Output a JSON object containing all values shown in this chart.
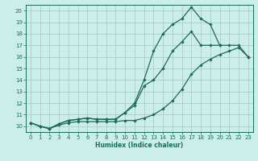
{
  "title": "",
  "xlabel": "Humidex (Indice chaleur)",
  "bg_color": "#cceee8",
  "line_color": "#1a6b5a",
  "grid_color": "#aacccc",
  "xlim": [
    -0.5,
    23.5
  ],
  "ylim": [
    9.5,
    20.5
  ],
  "xticks": [
    0,
    1,
    2,
    3,
    4,
    5,
    6,
    7,
    8,
    9,
    10,
    11,
    12,
    13,
    14,
    15,
    16,
    17,
    18,
    19,
    20,
    21,
    22,
    23
  ],
  "yticks": [
    10,
    11,
    12,
    13,
    14,
    15,
    16,
    17,
    18,
    19,
    20
  ],
  "line1_x": [
    0,
    1,
    2,
    3,
    4,
    5,
    6,
    7,
    8,
    9,
    10,
    11,
    12,
    13,
    14,
    15,
    16,
    17,
    18,
    19,
    20,
    21,
    22,
    23
  ],
  "line1_y": [
    10.3,
    10.0,
    9.8,
    10.1,
    10.3,
    10.4,
    10.4,
    10.4,
    10.4,
    10.4,
    10.5,
    10.5,
    10.7,
    11.0,
    11.5,
    12.2,
    13.2,
    14.5,
    15.3,
    15.8,
    16.2,
    16.5,
    16.8,
    16.0
  ],
  "line2_x": [
    0,
    1,
    2,
    3,
    4,
    5,
    6,
    7,
    8,
    9,
    10,
    11,
    12,
    13,
    14,
    15,
    16,
    17,
    18,
    19,
    20,
    21,
    22,
    23
  ],
  "line2_y": [
    10.3,
    10.0,
    9.8,
    10.2,
    10.5,
    10.6,
    10.7,
    10.6,
    10.6,
    10.6,
    11.2,
    11.8,
    13.5,
    14.0,
    15.0,
    16.5,
    17.3,
    18.2,
    17.0,
    17.0,
    17.0,
    17.0,
    17.0,
    16.0
  ],
  "line3_x": [
    0,
    1,
    2,
    3,
    4,
    5,
    6,
    7,
    8,
    9,
    10,
    11,
    12,
    13,
    14,
    15,
    16,
    17,
    18,
    19,
    20
  ],
  "line3_y": [
    10.3,
    10.0,
    9.8,
    10.2,
    10.5,
    10.6,
    10.7,
    10.6,
    10.6,
    10.6,
    11.2,
    12.0,
    14.0,
    16.5,
    18.0,
    18.8,
    19.3,
    20.3,
    19.3,
    18.8,
    17.0
  ]
}
